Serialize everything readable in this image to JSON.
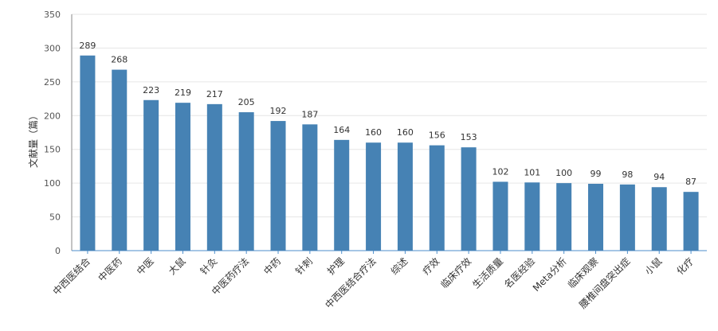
{
  "chart_data": {
    "type": "bar",
    "title": "",
    "xlabel": "",
    "ylabel": "文献量（篇）",
    "ylim": [
      0,
      350
    ],
    "yticks": [
      0,
      50,
      100,
      150,
      200,
      250,
      300,
      350
    ],
    "grid": true,
    "legend": "none",
    "bar_color": "#4682b4",
    "categories": [
      "中西医结合",
      "中医药",
      "中医",
      "大鼠",
      "针灸",
      "中医药疗法",
      "中药",
      "针刺",
      "护理",
      "中西医结合疗法",
      "综述",
      "疗效",
      "临床疗效",
      "生活质量",
      "名医经验",
      "Meta分析",
      "临床观察",
      "腰椎间盘突出症",
      "小鼠",
      "化疗"
    ],
    "values": [
      289,
      268,
      223,
      219,
      217,
      205,
      192,
      187,
      164,
      160,
      160,
      156,
      153,
      102,
      101,
      100,
      99,
      98,
      94,
      87
    ]
  }
}
